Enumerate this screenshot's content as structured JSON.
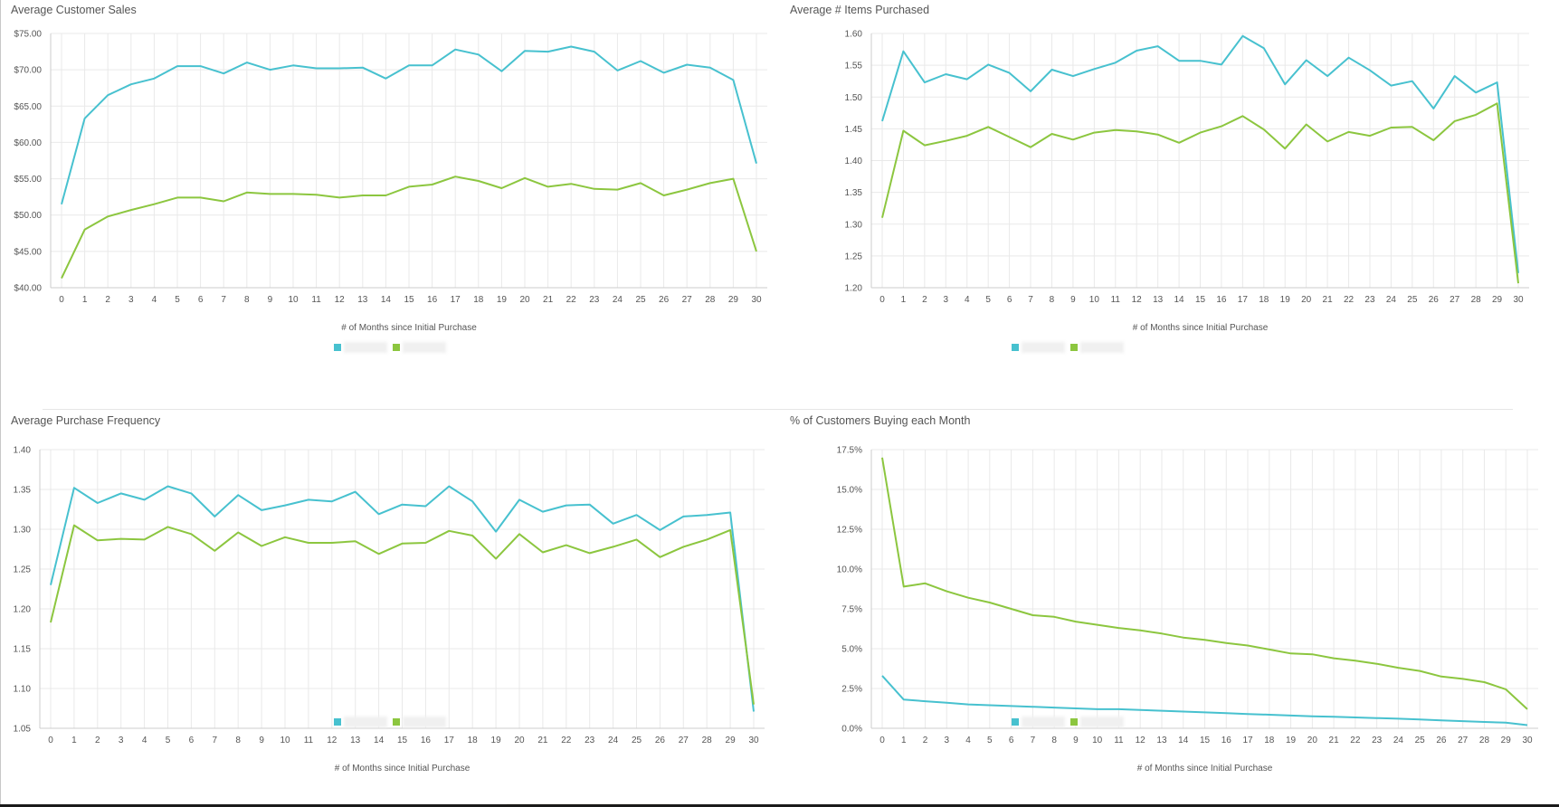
{
  "colors": {
    "series_a": "#47c1cf",
    "series_b": "#8cc63f",
    "grid": "#e9e9e9",
    "axis": "#cccccc"
  },
  "chart_data": [
    {
      "id": "sales",
      "type": "line",
      "title": "Average Customer Sales",
      "xlabel": "# of Months since Initial Purchase",
      "ylabel": "",
      "ylim": [
        40,
        75
      ],
      "yticks": [
        40,
        45,
        50,
        55,
        60,
        65,
        70,
        75
      ],
      "ytick_labels": [
        "$40.00",
        "$45.00",
        "$50.00",
        "$55.00",
        "$60.00",
        "$65.00",
        "$70.00",
        "$75.00"
      ],
      "x": [
        0,
        1,
        2,
        3,
        4,
        5,
        6,
        7,
        8,
        9,
        10,
        11,
        12,
        13,
        14,
        15,
        16,
        17,
        18,
        19,
        20,
        21,
        22,
        23,
        24,
        25,
        26,
        27,
        28,
        29,
        30
      ],
      "series": [
        {
          "name": "",
          "color": "#47c1cf",
          "values": [
            51.5,
            63.3,
            66.5,
            68.0,
            68.8,
            70.5,
            70.5,
            69.5,
            71.0,
            70.0,
            70.6,
            70.2,
            70.2,
            70.3,
            68.8,
            70.6,
            70.6,
            72.8,
            72.1,
            69.8,
            72.6,
            72.5,
            73.2,
            72.5,
            69.9,
            71.2,
            69.6,
            70.7,
            70.3,
            68.6,
            57.1
          ]
        },
        {
          "name": "",
          "color": "#8cc63f",
          "values": [
            41.3,
            48.0,
            49.8,
            50.7,
            51.5,
            52.4,
            52.4,
            51.9,
            53.1,
            52.9,
            52.9,
            52.8,
            52.4,
            52.7,
            52.7,
            53.9,
            54.2,
            55.3,
            54.7,
            53.7,
            55.1,
            53.9,
            54.3,
            53.6,
            53.5,
            54.4,
            52.7,
            53.5,
            54.4,
            55.0,
            45.0
          ]
        }
      ]
    },
    {
      "id": "items",
      "type": "line",
      "title": "Average # Items Purchased",
      "xlabel": "# of Months since Initial Purchase",
      "ylabel": "",
      "ylim": [
        1.2,
        1.6
      ],
      "yticks": [
        1.2,
        1.25,
        1.3,
        1.35,
        1.4,
        1.45,
        1.5,
        1.55,
        1.6
      ],
      "ytick_labels": [
        "1.20",
        "1.25",
        "1.30",
        "1.35",
        "1.40",
        "1.45",
        "1.50",
        "1.55",
        "1.60"
      ],
      "x": [
        0,
        1,
        2,
        3,
        4,
        5,
        6,
        7,
        8,
        9,
        10,
        11,
        12,
        13,
        14,
        15,
        16,
        17,
        18,
        19,
        20,
        21,
        22,
        23,
        24,
        25,
        26,
        27,
        28,
        29,
        30
      ],
      "series": [
        {
          "name": "",
          "color": "#47c1cf",
          "values": [
            1.462,
            1.572,
            1.523,
            1.536,
            1.528,
            1.551,
            1.538,
            1.509,
            1.543,
            1.533,
            1.544,
            1.554,
            1.573,
            1.58,
            1.557,
            1.557,
            1.551,
            1.596,
            1.577,
            1.52,
            1.558,
            1.533,
            1.562,
            1.542,
            1.518,
            1.525,
            1.482,
            1.533,
            1.507,
            1.523,
            1.223
          ]
        },
        {
          "name": "",
          "color": "#8cc63f",
          "values": [
            1.31,
            1.447,
            1.424,
            1.431,
            1.439,
            1.453,
            1.437,
            1.421,
            1.442,
            1.433,
            1.444,
            1.448,
            1.446,
            1.441,
            1.428,
            1.444,
            1.454,
            1.47,
            1.449,
            1.419,
            1.457,
            1.43,
            1.445,
            1.439,
            1.452,
            1.453,
            1.432,
            1.462,
            1.472,
            1.49,
            1.207
          ]
        }
      ]
    },
    {
      "id": "frequency",
      "type": "line",
      "title": "Average Purchase Frequency",
      "xlabel": "# of Months since Initial Purchase",
      "ylabel": "",
      "ylim": [
        1.05,
        1.4
      ],
      "yticks": [
        1.05,
        1.1,
        1.15,
        1.2,
        1.25,
        1.3,
        1.35,
        1.4
      ],
      "ytick_labels": [
        "1.05",
        "1.10",
        "1.15",
        "1.20",
        "1.25",
        "1.30",
        "1.35",
        "1.40"
      ],
      "x": [
        0,
        1,
        2,
        3,
        4,
        5,
        6,
        7,
        8,
        9,
        10,
        11,
        12,
        13,
        14,
        15,
        16,
        17,
        18,
        19,
        20,
        21,
        22,
        23,
        24,
        25,
        26,
        27,
        28,
        29,
        30
      ],
      "series": [
        {
          "name": "",
          "color": "#47c1cf",
          "values": [
            1.23,
            1.352,
            1.333,
            1.345,
            1.337,
            1.354,
            1.345,
            1.316,
            1.343,
            1.324,
            1.33,
            1.337,
            1.335,
            1.347,
            1.319,
            1.331,
            1.329,
            1.354,
            1.335,
            1.297,
            1.337,
            1.322,
            1.33,
            1.331,
            1.307,
            1.318,
            1.299,
            1.316,
            1.318,
            1.321,
            1.071
          ]
        },
        {
          "name": "",
          "color": "#8cc63f",
          "values": [
            1.183,
            1.305,
            1.286,
            1.288,
            1.287,
            1.303,
            1.294,
            1.273,
            1.296,
            1.279,
            1.29,
            1.283,
            1.283,
            1.285,
            1.269,
            1.282,
            1.283,
            1.298,
            1.292,
            1.263,
            1.294,
            1.271,
            1.28,
            1.27,
            1.278,
            1.287,
            1.265,
            1.278,
            1.287,
            1.299,
            1.08
          ]
        }
      ]
    },
    {
      "id": "buying",
      "type": "line",
      "title": "% of Customers Buying each Month",
      "xlabel": "# of Months since Initial Purchase",
      "ylabel": "",
      "ylim": [
        0,
        17.5
      ],
      "yticks": [
        0,
        2.5,
        5,
        7.5,
        10,
        12.5,
        15,
        17.5
      ],
      "ytick_labels": [
        "0.0%",
        "2.5%",
        "5.0%",
        "7.5%",
        "10.0%",
        "12.5%",
        "15.0%",
        "17.5%"
      ],
      "x": [
        0,
        1,
        2,
        3,
        4,
        5,
        6,
        7,
        8,
        9,
        10,
        11,
        12,
        13,
        14,
        15,
        16,
        17,
        18,
        19,
        20,
        21,
        22,
        23,
        24,
        25,
        26,
        27,
        28,
        29,
        30
      ],
      "series": [
        {
          "name": "",
          "color": "#47c1cf",
          "values": [
            3.3,
            1.8,
            1.7,
            1.6,
            1.5,
            1.45,
            1.4,
            1.35,
            1.3,
            1.25,
            1.2,
            1.2,
            1.15,
            1.1,
            1.05,
            1.0,
            0.95,
            0.9,
            0.85,
            0.8,
            0.75,
            0.72,
            0.68,
            0.64,
            0.6,
            0.55,
            0.5,
            0.45,
            0.4,
            0.35,
            0.2
          ]
        },
        {
          "name": "",
          "color": "#8cc63f",
          "values": [
            17.0,
            8.9,
            9.1,
            8.6,
            8.2,
            7.9,
            7.5,
            7.1,
            7.0,
            6.7,
            6.5,
            6.3,
            6.15,
            5.95,
            5.7,
            5.55,
            5.35,
            5.2,
            4.95,
            4.7,
            4.65,
            4.4,
            4.25,
            4.05,
            3.8,
            3.6,
            3.25,
            3.1,
            2.9,
            2.45,
            1.2
          ]
        }
      ]
    }
  ]
}
